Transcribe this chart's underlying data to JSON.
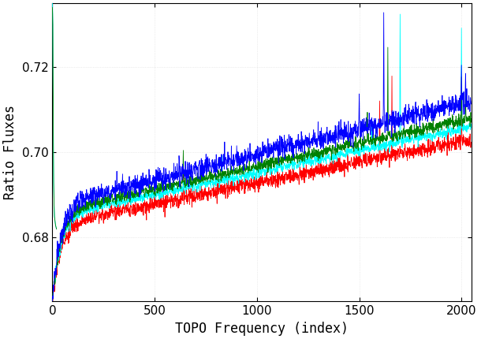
{
  "title": "",
  "xlabel": "TOPO Frequency (index)",
  "ylabel": "Ratio Fluxes",
  "xlim": [
    0,
    2048
  ],
  "ylim": [
    0.665,
    0.735
  ],
  "yticks": [
    0.68,
    0.7,
    0.72
  ],
  "xticks": [
    0,
    500,
    1000,
    1500,
    2000
  ],
  "n_points": 2048,
  "background_color": "#ffffff",
  "linewidth": 0.6
}
